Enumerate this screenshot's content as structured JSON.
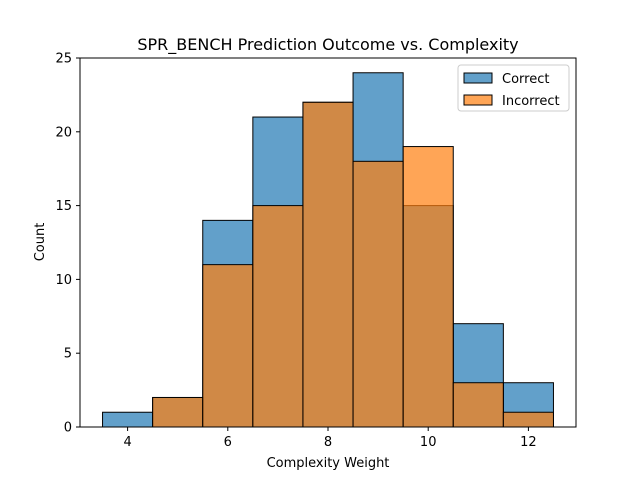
{
  "chart_data": {
    "type": "bar",
    "title": "SPR_BENCH Prediction Outcome vs. Complexity",
    "xlabel": "Complexity Weight",
    "ylabel": "Count",
    "xlim": [
      3.05,
      12.95
    ],
    "ylim": [
      0,
      25
    ],
    "xticks": [
      4,
      6,
      8,
      10,
      12
    ],
    "yticks": [
      0,
      5,
      10,
      15,
      20,
      25
    ],
    "bins": [
      [
        3.5,
        4.5
      ],
      [
        4.5,
        5.5
      ],
      [
        5.5,
        6.5
      ],
      [
        6.5,
        7.5
      ],
      [
        7.5,
        8.5
      ],
      [
        8.5,
        9.5
      ],
      [
        9.5,
        10.5
      ],
      [
        10.5,
        11.5
      ],
      [
        11.5,
        12.5
      ]
    ],
    "series": [
      {
        "name": "Correct",
        "color": "#1f77b4",
        "values": [
          1,
          2,
          14,
          21,
          22,
          24,
          15,
          7,
          3
        ]
      },
      {
        "name": "Incorrect",
        "color": "#ff7f0e",
        "values": [
          0,
          2,
          11,
          15,
          22,
          18,
          19,
          3,
          1
        ]
      }
    ],
    "grid": false,
    "legend": "top-right"
  }
}
